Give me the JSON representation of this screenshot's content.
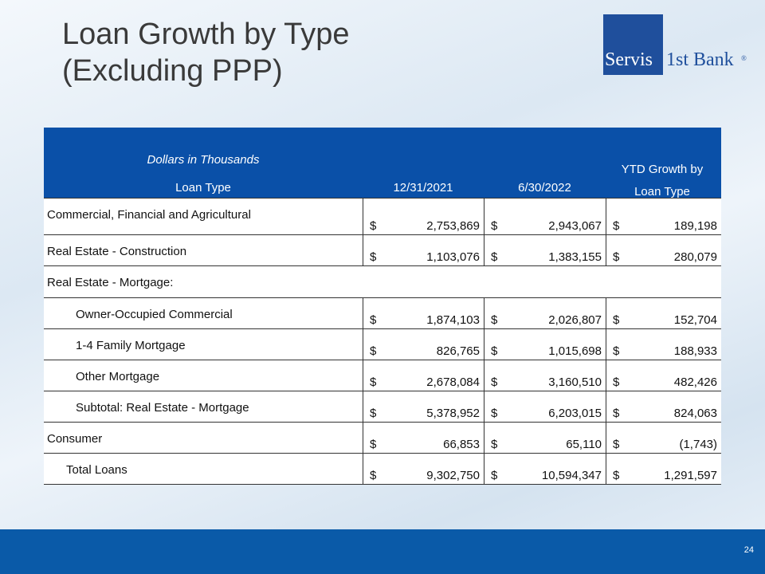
{
  "header": {
    "title_lines": [
      "Loan Growth by Type",
      "(Excluding PPP)"
    ],
    "logo": {
      "left": "Servis",
      "right": "1st Bank",
      "mark": "®"
    }
  },
  "table": {
    "caption": "Dollars in Thousands",
    "currency": "$",
    "columns": [
      "Loan Type",
      "12/31/2021",
      "6/30/2022",
      "YTD Growth by Loan Type"
    ],
    "rows": [
      {
        "label": "Commercial, Financial and Agricultural",
        "values": [
          "2,753,869",
          "2,943,067",
          "189,198"
        ]
      },
      {
        "label": "Real Estate - Construction",
        "values": [
          "1,103,076",
          "1,383,155",
          "280,079"
        ]
      },
      {
        "label": "Real Estate - Mortgage:"
      },
      {
        "label": "Owner-Occupied Commercial",
        "values": [
          "1,874,103",
          "2,026,807",
          "152,704"
        ]
      },
      {
        "label": "1-4 Family Mortgage",
        "values": [
          "826,765",
          "1,015,698",
          "188,933"
        ]
      },
      {
        "label": "Other Mortgage",
        "values": [
          "2,678,084",
          "3,160,510",
          "482,426"
        ]
      },
      {
        "label": "Subtotal: Real Estate - Mortgage",
        "values": [
          "5,378,952",
          "6,203,015",
          "824,063"
        ]
      },
      {
        "label": "Consumer",
        "values": [
          "66,853",
          "65,110",
          "(1,743)"
        ]
      },
      {
        "label": "Total Loans",
        "values": [
          "9,302,750",
          "10,594,347",
          "1,291,597"
        ]
      }
    ]
  },
  "footer": {
    "page": "24"
  }
}
